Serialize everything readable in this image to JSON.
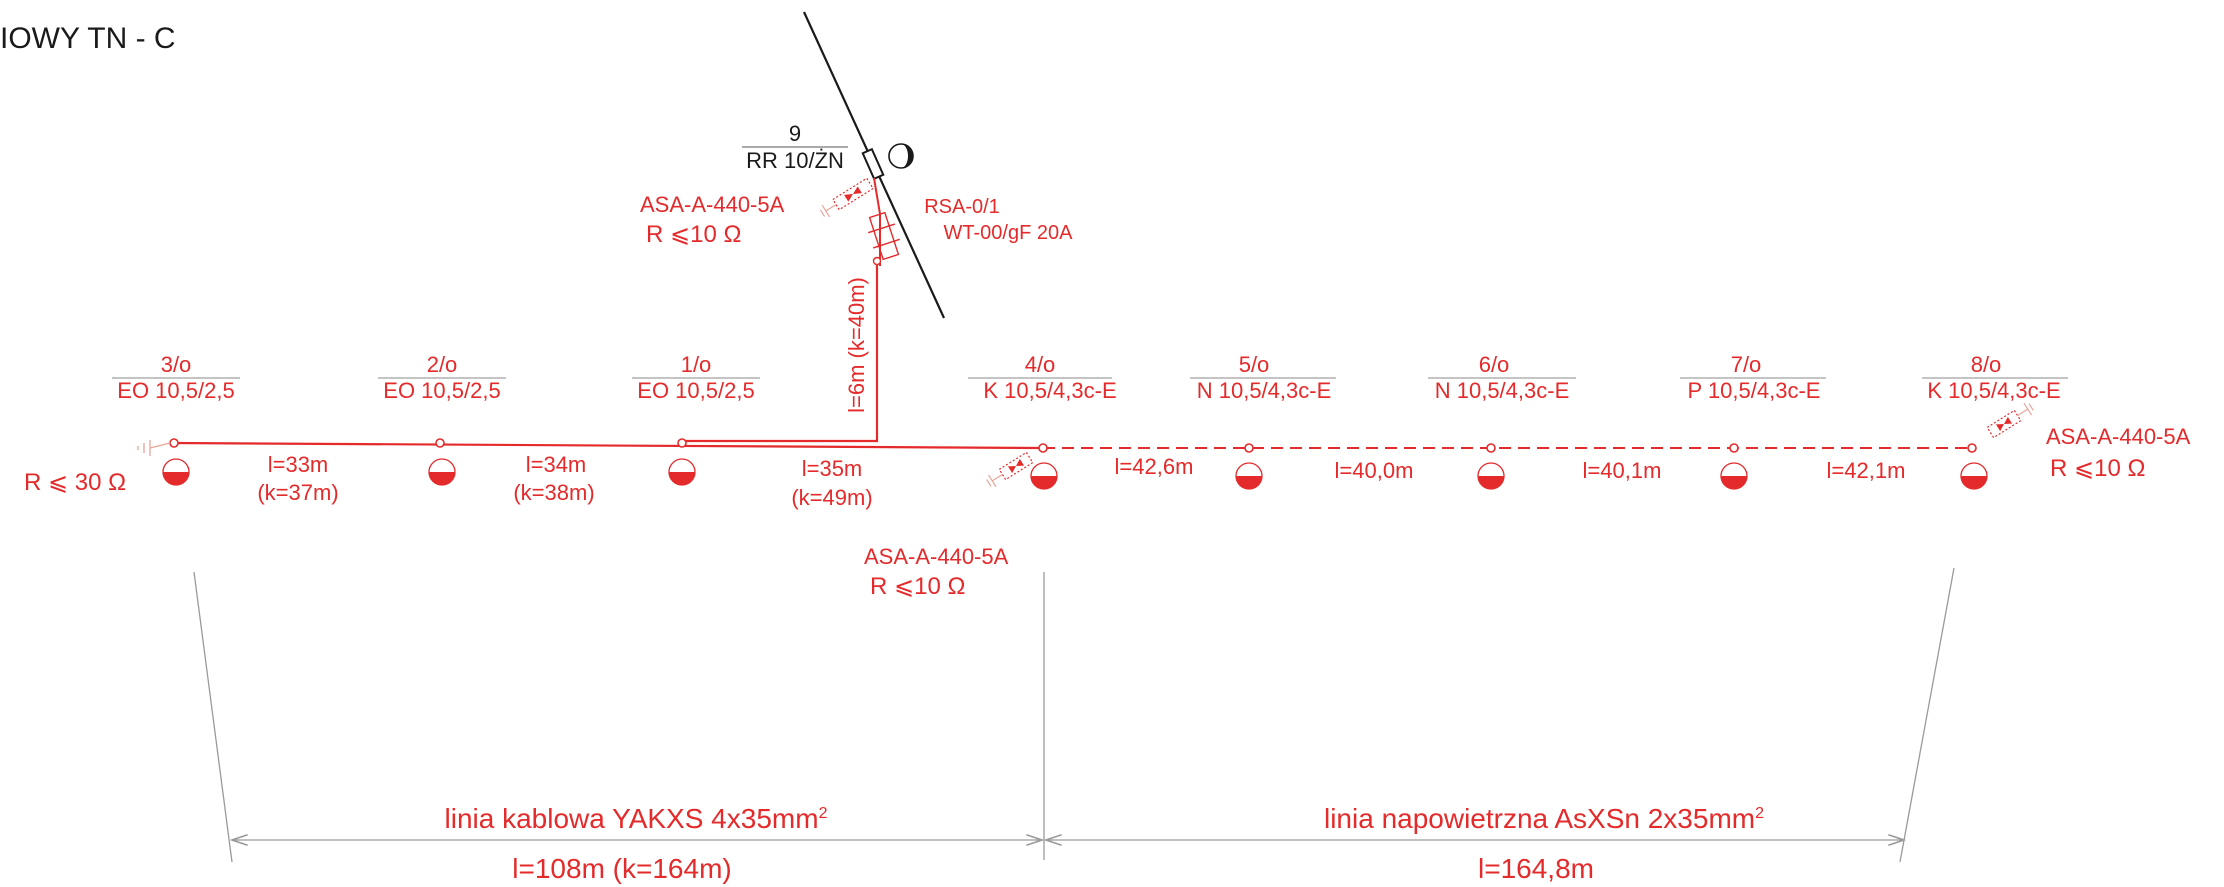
{
  "colors": {
    "accent": "#e42a2a",
    "ink": "#1a1a1a",
    "dim": "#9a9a9a",
    "ground": "#e8a59a"
  },
  "header": {
    "system_label": "IOWY  TN - C"
  },
  "supply": {
    "pole_number": "9",
    "pole_type": "RR 10/ŻN",
    "switch_line1": "RSA-0/1",
    "switch_line2": "WT-00/gF 20A",
    "arrester_name": "ASA-A-440-5A",
    "arrester_r": "R ⩽10 Ω",
    "riser_length": "l=6m  (k=40m)"
  },
  "poles": [
    {
      "number": "3/o",
      "type": "EO 10,5/2,5"
    },
    {
      "number": "2/o",
      "type": "EO 10,5/2,5"
    },
    {
      "number": "1/o",
      "type": "EO 10,5/2,5"
    },
    {
      "number": "4/o",
      "type": "K 10,5/4,3c-E"
    },
    {
      "number": "5/o",
      "type": "N 10,5/4,3c-E"
    },
    {
      "number": "6/o",
      "type": "N 10,5/4,3c-E"
    },
    {
      "number": "7/o",
      "type": "P 10,5/4,3c-E"
    },
    {
      "number": "8/o",
      "type": "K 10,5/4,3c-E"
    }
  ],
  "spans": [
    {
      "length": "l=33m",
      "cable_length": "(k=37m)"
    },
    {
      "length": "l=34m",
      "cable_length": "(k=38m)"
    },
    {
      "length": "l=35m",
      "cable_length": "(k=49m)"
    },
    {
      "length": "l=42,6m",
      "cable_length": ""
    },
    {
      "length": "l=40,0m",
      "cable_length": ""
    },
    {
      "length": "l=40,1m",
      "cable_length": ""
    },
    {
      "length": "l=42,1m",
      "cable_length": ""
    }
  ],
  "groundings": {
    "left_r": "R ⩽ 30 Ω",
    "mid_name": "ASA-A-440-5A",
    "mid_r": "R ⩽10 Ω",
    "right_name": "ASA-A-440-5A",
    "right_r": "R ⩽10 Ω"
  },
  "sections": {
    "cable_title": "linia kablowa YAKXS 4x35mm",
    "cable_title_sup": "2",
    "cable_length": "l=108m  (k=164m)",
    "overhead_title": "linia napowietrzna  AsXSn 2x35mm",
    "overhead_title_sup": "2",
    "overhead_length": "l=164,8m"
  }
}
